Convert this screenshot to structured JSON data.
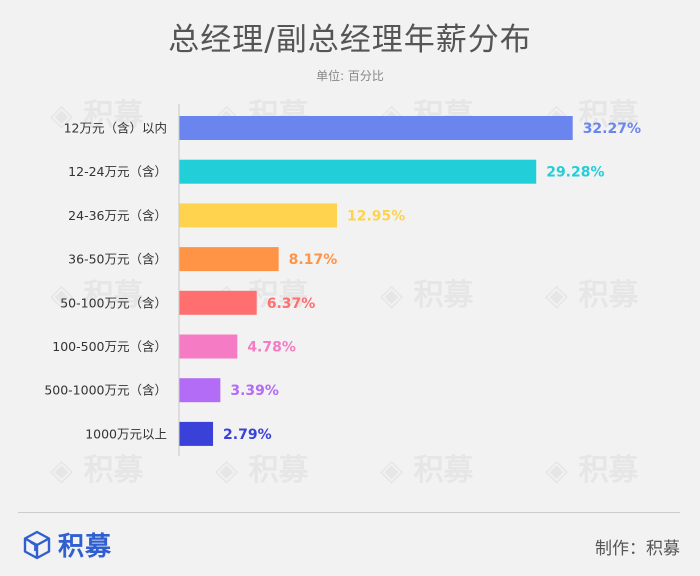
{
  "header": {
    "title": "总经理/副总经理年薪分布",
    "unit_label": "单位: 百分比"
  },
  "chart_data": {
    "type": "bar",
    "orientation": "horizontal",
    "title": "总经理/副总经理年薪分布",
    "subtitle": "单位: 百分比",
    "categories": [
      "12万元（含）以内",
      "12-24万元（含）",
      "24-36万元（含）",
      "36-50万元（含）",
      "50-100万元（含）",
      "100-500万元（含）",
      "500-1000万元（含）",
      "1000万元以上"
    ],
    "values": [
      32.27,
      29.28,
      12.95,
      8.17,
      6.37,
      4.78,
      3.39,
      2.79
    ],
    "value_labels": [
      "32.27%",
      "29.28%",
      "12.95%",
      "8.17%",
      "6.37%",
      "4.78%",
      "3.39%",
      "2.79%"
    ],
    "colors": [
      "#6a85ee",
      "#22cfd9",
      "#ffd34d",
      "#ff9447",
      "#ff6f6f",
      "#f57bc4",
      "#b36cf5",
      "#3a41d8"
    ],
    "xlim": [
      0,
      35
    ],
    "grid": false
  },
  "watermark": {
    "text": "积募"
  },
  "footer": {
    "logo_text": "积募",
    "credit": "制作：积募"
  }
}
